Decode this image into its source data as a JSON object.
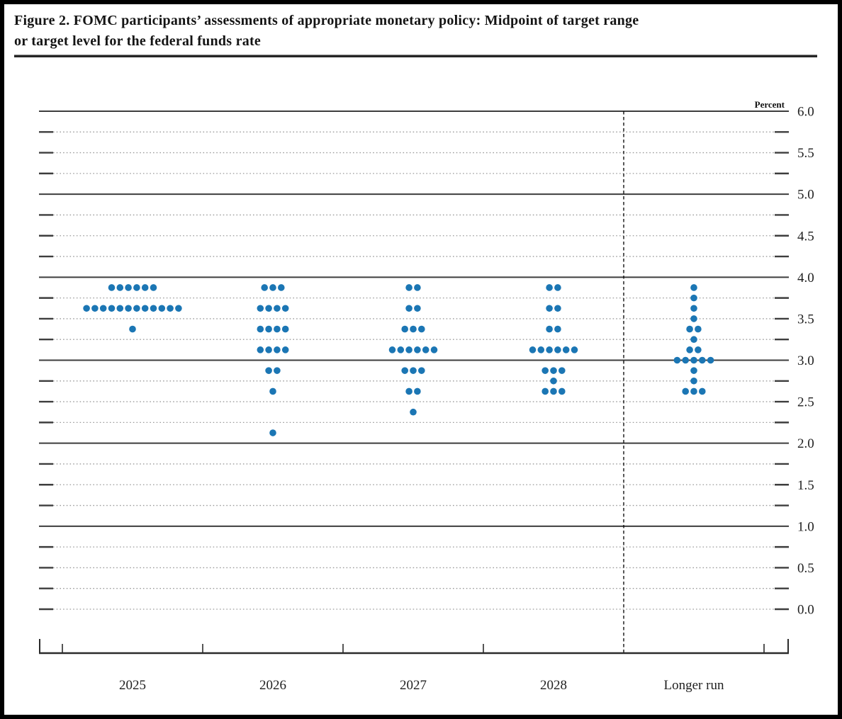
{
  "figure": {
    "title_line1": "Figure 2. FOMC participants’ assessments of appropriate monetary policy: Midpoint of target range",
    "title_line2": "or target level for the federal funds rate"
  },
  "chart_data": {
    "type": "scatter",
    "subtype": "fomc-dot-plot",
    "title": "Figure 2. FOMC participants’ assessments of appropriate monetary policy: Midpoint of target range or target level for the federal funds rate",
    "unit_label": "Percent",
    "categories": [
      "2025",
      "2026",
      "2027",
      "2028",
      "Longer run"
    ],
    "ylim": [
      0.0,
      6.0
    ],
    "y_tick_labels": [
      "6.0",
      "5.5",
      "5.0",
      "4.5",
      "4.0",
      "3.5",
      "3.0",
      "2.5",
      "2.0",
      "1.5",
      "1.0",
      "0.5",
      "0.0"
    ],
    "y_solid_gridlines": [
      1.0,
      2.0,
      3.0,
      4.0,
      5.0,
      6.0
    ],
    "y_minor_gridline_step": 0.25,
    "grid": "on",
    "separator_before_category": "Longer run",
    "dot_color": "#1b76b4",
    "participants_per_column": 19,
    "series": [
      {
        "category": "2025",
        "dots": [
          {
            "rate": 3.875,
            "count": 6
          },
          {
            "rate": 3.625,
            "count": 12
          },
          {
            "rate": 3.375,
            "count": 1
          }
        ]
      },
      {
        "category": "2026",
        "dots": [
          {
            "rate": 3.875,
            "count": 3
          },
          {
            "rate": 3.625,
            "count": 4
          },
          {
            "rate": 3.375,
            "count": 4
          },
          {
            "rate": 3.125,
            "count": 4
          },
          {
            "rate": 2.875,
            "count": 2
          },
          {
            "rate": 2.625,
            "count": 1
          },
          {
            "rate": 2.125,
            "count": 1
          }
        ]
      },
      {
        "category": "2027",
        "dots": [
          {
            "rate": 3.875,
            "count": 2
          },
          {
            "rate": 3.625,
            "count": 2
          },
          {
            "rate": 3.375,
            "count": 3
          },
          {
            "rate": 3.125,
            "count": 6
          },
          {
            "rate": 2.875,
            "count": 3
          },
          {
            "rate": 2.625,
            "count": 2
          },
          {
            "rate": 2.375,
            "count": 1
          }
        ]
      },
      {
        "category": "2028",
        "dots": [
          {
            "rate": 3.875,
            "count": 2
          },
          {
            "rate": 3.625,
            "count": 2
          },
          {
            "rate": 3.375,
            "count": 2
          },
          {
            "rate": 3.125,
            "count": 6
          },
          {
            "rate": 2.875,
            "count": 3
          },
          {
            "rate": 2.75,
            "count": 1
          },
          {
            "rate": 2.625,
            "count": 3
          }
        ]
      },
      {
        "category": "Longer run",
        "dots": [
          {
            "rate": 3.875,
            "count": 1
          },
          {
            "rate": 3.75,
            "count": 1
          },
          {
            "rate": 3.625,
            "count": 1
          },
          {
            "rate": 3.5,
            "count": 1
          },
          {
            "rate": 3.375,
            "count": 2
          },
          {
            "rate": 3.25,
            "count": 1
          },
          {
            "rate": 3.125,
            "count": 2
          },
          {
            "rate": 3.0,
            "count": 5
          },
          {
            "rate": 2.875,
            "count": 1
          },
          {
            "rate": 2.75,
            "count": 1
          },
          {
            "rate": 2.625,
            "count": 3
          }
        ]
      }
    ]
  }
}
